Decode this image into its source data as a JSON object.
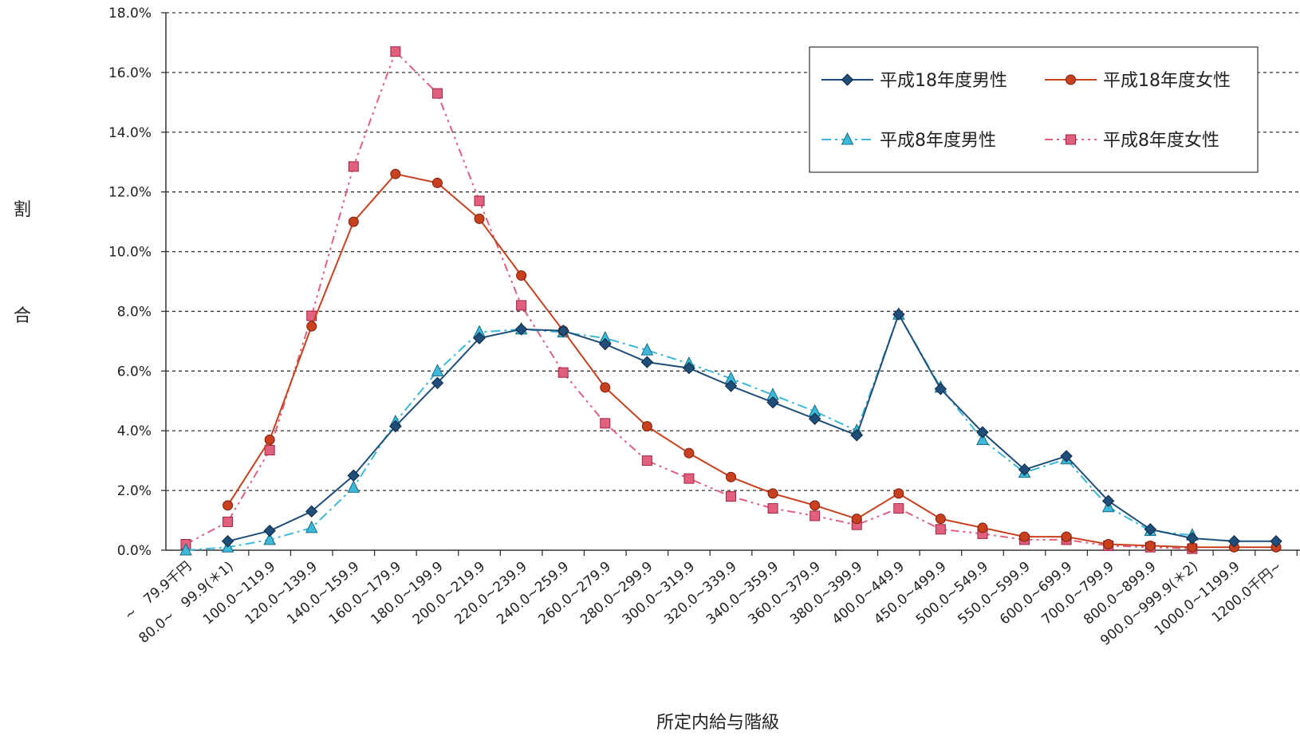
{
  "chart_data": {
    "type": "line",
    "xlabel": "所定内給与階級",
    "ylabel": "割合",
    "ylabel_chars": [
      "割",
      "合"
    ],
    "ylim": [
      0,
      18
    ],
    "ytick_labels": [
      "0.0%",
      "2.0%",
      "4.0%",
      "6.0%",
      "8.0%",
      "10.0%",
      "12.0%",
      "14.0%",
      "16.0%",
      "18.0%"
    ],
    "grid": true,
    "legend_position": "top-right",
    "categories": [
      "~　79.9千円",
      "80.0~　99.9(＊1)",
      "100.0~119.9",
      "120.0~139.9",
      "140.0~159.9",
      "160.0~179.9",
      "180.0~199.9",
      "200.0~219.9",
      "220.0~239.9",
      "240.0~259.9",
      "260.0~279.9",
      "280.0~299.9",
      "300.0~319.9",
      "320.0~339.9",
      "340.0~359.9",
      "360.0~379.9",
      "380.0~399.9",
      "400.0~449.9",
      "450.0~499.9",
      "500.0~549.9",
      "550.0~599.9",
      "600.0~699.9",
      "700.0~799.9",
      "800.0~899.9",
      "900.0~999.9(＊2)",
      "1000.0~1199.9",
      "1200.0千円~"
    ],
    "series": [
      {
        "name": "平成18年度男性",
        "color": "#1f4e79",
        "marker": "diamond",
        "dash": "solid",
        "values": [
          null,
          0.3,
          0.65,
          1.3,
          2.5,
          4.15,
          5.6,
          7.1,
          7.4,
          7.35,
          6.9,
          6.3,
          6.1,
          5.5,
          4.95,
          4.4,
          3.85,
          7.9,
          5.4,
          3.95,
          2.7,
          3.15,
          1.65,
          0.7,
          0.4,
          0.3,
          0.3
        ]
      },
      {
        "name": "平成18年度女性",
        "color": "#c8401e",
        "marker": "circle",
        "dash": "solid",
        "values": [
          null,
          1.5,
          3.7,
          7.5,
          11.0,
          12.6,
          12.3,
          11.1,
          9.2,
          7.35,
          5.45,
          4.15,
          3.25,
          2.45,
          1.9,
          1.5,
          1.05,
          1.9,
          1.05,
          0.75,
          0.45,
          0.45,
          0.2,
          0.15,
          0.1,
          0.1,
          0.1
        ]
      },
      {
        "name": "平成8年度男性",
        "color": "#3cb8d8",
        "marker": "triangle",
        "dash": "dashdot",
        "values": [
          0.0,
          0.1,
          0.35,
          0.75,
          2.1,
          4.3,
          6.0,
          7.3,
          7.4,
          7.3,
          7.1,
          6.7,
          6.25,
          5.75,
          5.2,
          4.65,
          4.0,
          7.9,
          5.45,
          3.7,
          2.6,
          3.05,
          1.45,
          0.65,
          0.5,
          null,
          null
        ]
      },
      {
        "name": "平成8年度女性",
        "color": "#e0607e",
        "marker": "square",
        "dash": "dashdot2",
        "values": [
          0.2,
          0.95,
          3.35,
          7.85,
          12.85,
          16.7,
          15.3,
          11.7,
          8.2,
          5.95,
          4.25,
          3.0,
          2.4,
          1.8,
          1.4,
          1.15,
          0.85,
          1.4,
          0.7,
          0.55,
          0.35,
          0.35,
          0.15,
          0.1,
          0.05,
          null,
          null
        ]
      }
    ]
  }
}
